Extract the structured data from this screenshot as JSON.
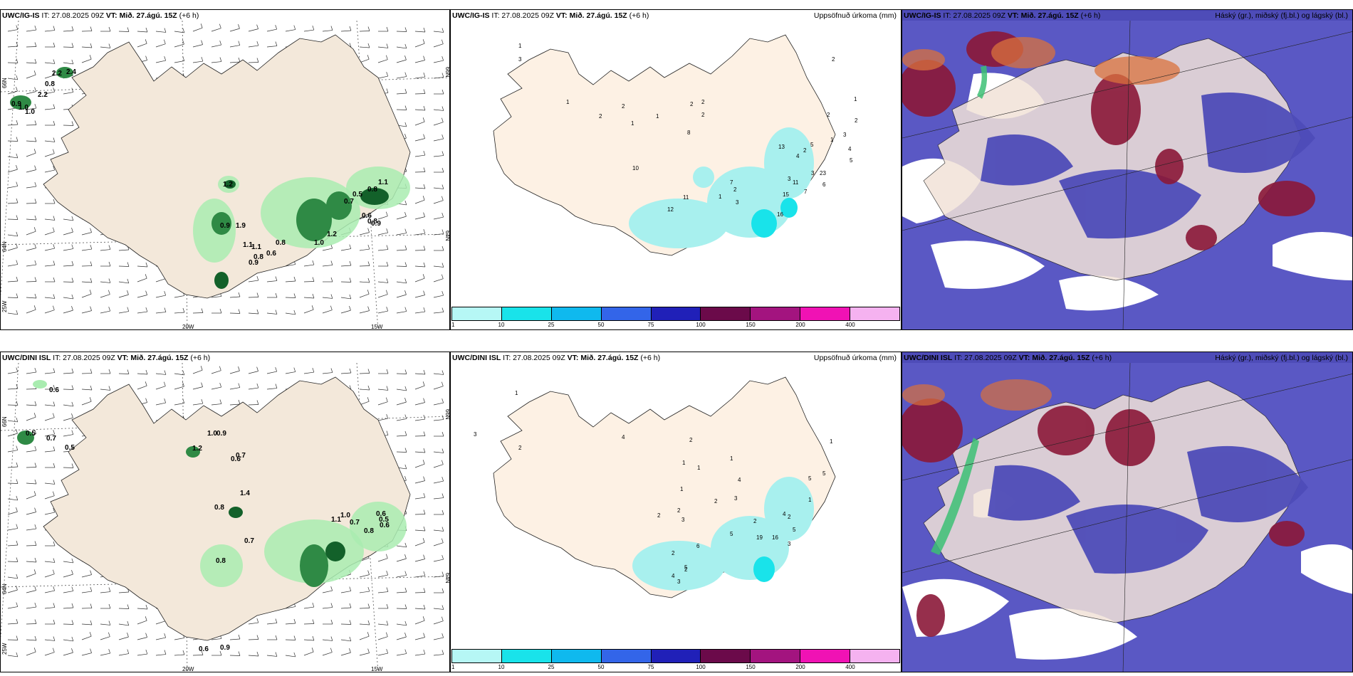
{
  "panels": {
    "top_left": {
      "model": "UWC/IG-IS",
      "issue": "IT: 27.08.2025 09Z",
      "valid_label": "VT:",
      "valid": "Mið. 27.ágú. 15Z",
      "lead": "(+6 h)",
      "axis": {
        "lat1": "66N",
        "lat2": "64N",
        "lon1": "25W",
        "lon2": "20W",
        "lon3": "15W",
        "lat1r": "66N",
        "lat2r": "64N"
      },
      "labels": [
        "2.2",
        "2.4",
        "0.8",
        "2.2",
        "0.9",
        "1.0",
        "1.0",
        "1.2",
        "0.9",
        "1.9",
        "1.1",
        "1.1",
        "0.8",
        "0.6",
        "0.9",
        "0.8",
        "1.0",
        "1.2",
        "0.7",
        "0.5",
        "0.8",
        "0.6",
        "0.8",
        "0.9",
        "1.1"
      ]
    },
    "top_mid": {
      "model": "UWC/IG-IS",
      "issue": "IT: 27.08.2025 09Z",
      "valid_label": "VT:",
      "valid": "Mið. 27.ágú. 15Z",
      "lead": "(+6 h)",
      "title": "Uppsöfnuð úrkoma (mm)",
      "labels": [
        "1",
        "3",
        "1",
        "1",
        "2",
        "2",
        "1",
        "2",
        "2",
        "8",
        "2",
        "2",
        "1",
        "3",
        "11",
        "12",
        "7",
        "10",
        "13",
        "5",
        "2",
        "3",
        "4",
        "11",
        "7",
        "23",
        "6",
        "15",
        "16",
        "2",
        "1",
        "2",
        "2",
        "3",
        "4",
        "5",
        "3",
        "1"
      ]
    },
    "top_right": {
      "model": "UWC/IG-IS",
      "issue": "IT: 27.08.2025 09Z",
      "valid_label": "VT:",
      "valid": "Mið. 27.ágú. 15Z",
      "lead": "(+6 h)",
      "title": "Háský (gr.), miðský (fj.bl.) og lágský (bl.)"
    },
    "bot_left": {
      "model": "UWC/DINI ISL",
      "issue": "IT: 27.08.2025 09Z",
      "valid_label": "VT:",
      "valid": "Mið. 27.ágú. 15Z",
      "lead": "(+6 h)",
      "axis": {
        "lat1": "66N",
        "lat2": "64N",
        "lon1": "25W",
        "lon2": "20W",
        "lon3": "15W",
        "lat1r": "66N",
        "lat2r": "64N"
      },
      "labels": [
        "0.6",
        "0.5",
        "0.7",
        "0.5",
        "1.0",
        "0.9",
        "1.2",
        "0.7",
        "0.6",
        "1.4",
        "0.8",
        "0.7",
        "1.1",
        "1.0",
        "0.7",
        "0.6",
        "0.5",
        "0.6",
        "0.8",
        "0.8",
        "0.6",
        "0.9"
      ]
    },
    "bot_mid": {
      "model": "UWC/DINI ISL",
      "issue": "IT: 27.08.2025 09Z",
      "valid_label": "VT:",
      "valid": "Mið. 27.ágú. 15Z",
      "lead": "(+6 h)",
      "title": "Uppsöfnuð úrkoma (mm)",
      "labels": [
        "1",
        "3",
        "2",
        "4",
        "2",
        "1",
        "1",
        "1",
        "4",
        "1",
        "2",
        "2",
        "2",
        "3",
        "3",
        "2",
        "5",
        "6",
        "2",
        "5",
        "4",
        "3",
        "2",
        "19",
        "16",
        "4",
        "5",
        "3",
        "5",
        "5",
        "1",
        "2",
        "1"
      ]
    },
    "bot_right": {
      "model": "UWC/DINI ISL",
      "issue": "IT: 27.08.2025 09Z",
      "valid_label": "VT:",
      "valid": "Mið. 27.ágú. 15Z",
      "lead": "(+6 h)",
      "title": "Háský (gr.), miðský (fj.bl.) og lágský (bl.)"
    }
  },
  "colorbar": {
    "ticks": [
      "1",
      "10",
      "25",
      "50",
      "75",
      "100",
      "150",
      "200",
      "400"
    ],
    "colors": [
      "#b6f7f5",
      "#19e3ea",
      "#0fb9ee",
      "#3365e9",
      "#2020b8",
      "#6b0a4a",
      "#a3147f",
      "#f012b4",
      "#f5b2f0"
    ]
  },
  "colors": {
    "land": "#f3e8da",
    "land_mid": "#fdf1e4",
    "ocean": "#ffffff",
    "precip_light": "#a9ecb0",
    "precip_dark": "#13612a",
    "cloud_low": "#4e4cb8",
    "cloud_mid": "#8b1838",
    "cloud_high": "#d9713c"
  }
}
